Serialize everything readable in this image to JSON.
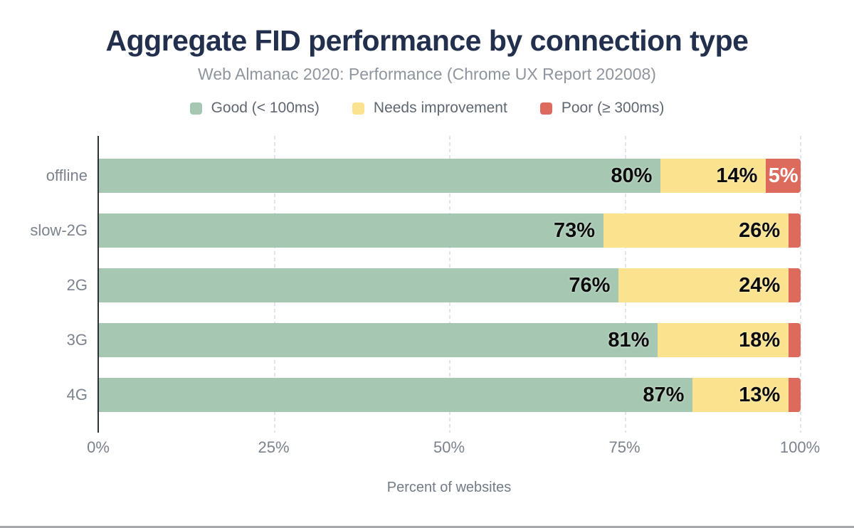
{
  "chart_data": {
    "type": "bar",
    "orientation": "horizontal-stacked",
    "title": "Aggregate FID performance by connection type",
    "subtitle": "Web Almanac 2020: Performance (Chrome UX Report 202008)",
    "categories": [
      "offline",
      "slow-2G",
      "2G",
      "3G",
      "4G"
    ],
    "series": [
      {
        "name": "Good (< 100ms)",
        "color": "#a6c8b2",
        "values": [
          80,
          73,
          76,
          81,
          87
        ]
      },
      {
        "name": "Needs improvement",
        "color": "#fbe28e",
        "values": [
          14,
          26,
          24,
          18,
          13
        ]
      },
      {
        "name": "Poor (≥ 300ms)",
        "color": "#dd6b5d",
        "values": [
          5,
          0.5,
          0.5,
          0.5,
          0.5
        ]
      }
    ],
    "segment_labels": [
      [
        "80%",
        "14%",
        "5%"
      ],
      [
        "73%",
        "26%",
        ""
      ],
      [
        "76%",
        "24%",
        ""
      ],
      [
        "81%",
        "18%",
        ""
      ],
      [
        "87%",
        "13%",
        ""
      ]
    ],
    "xlabel": "Percent of websites",
    "x_ticks": [
      {
        "label": "0%",
        "value": 0
      },
      {
        "label": "25%",
        "value": 25
      },
      {
        "label": "50%",
        "value": 50
      },
      {
        "label": "75%",
        "value": 75
      },
      {
        "label": "100%",
        "value": 100
      }
    ],
    "xlim": [
      0,
      100
    ],
    "grid": "vertical-dashed",
    "legend_position": "top",
    "colors": {
      "title": "#22304e",
      "subtitle": "#8f959c",
      "axis_line": "#2b3137",
      "gridline": "#e3e4e6",
      "tick_label": "#7b828c",
      "poor_label_text": "#ffffff"
    }
  }
}
